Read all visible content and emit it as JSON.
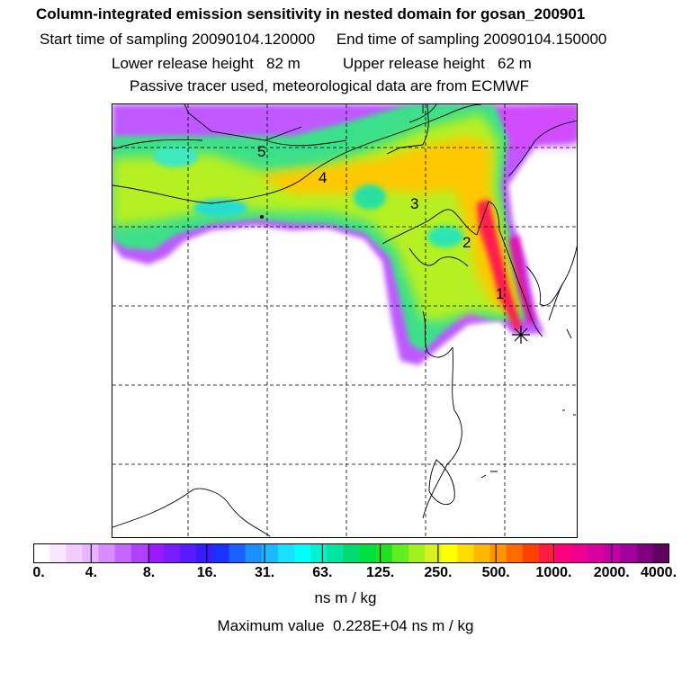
{
  "header": {
    "title": "Column-integrated emission sensitivity in nested domain for gosan_200901",
    "line2": "Start time of sampling 20090104.120000     End time of sampling 20090104.150000",
    "line3": "Lower release height   82 m          Upper release height   62 m",
    "line4": "Passive tracer used, meteorological data are from ECMWF"
  },
  "map": {
    "trajectory_markers": [
      "1",
      "2",
      "3",
      "4",
      "5"
    ],
    "receptor_icon": "star-asterisk-icon"
  },
  "colorbar": {
    "tick_labels": [
      "0.",
      "4.",
      "8.",
      "16.",
      "31.",
      "63.",
      "125.",
      "250.",
      "500.",
      "1000.",
      "2000.",
      "4000."
    ],
    "colors": [
      "#ffffff",
      "#fbe6ff",
      "#f3ccff",
      "#eab3ff",
      "#d98cff",
      "#c766ff",
      "#b340ff",
      "#9b1aff",
      "#7a1aff",
      "#5a1aff",
      "#3a1aff",
      "#1a30ff",
      "#1a60ff",
      "#1a90ff",
      "#1ab8ff",
      "#1ae0ff",
      "#00ffff",
      "#00f2d0",
      "#00e6a0",
      "#00d870",
      "#00e040",
      "#20e020",
      "#60ee20",
      "#a0f020",
      "#d8f020",
      "#ffff00",
      "#ffdc00",
      "#ffb800",
      "#ff9400",
      "#ff6a00",
      "#ff4000",
      "#ff1a40",
      "#ff0080",
      "#ee0090",
      "#d800a0",
      "#c000a8",
      "#a000a0",
      "#800080",
      "#600060"
    ],
    "units": "ns m / kg"
  },
  "footer": {
    "max_value": "Maximum value  0.228E+04 ns m / kg"
  }
}
